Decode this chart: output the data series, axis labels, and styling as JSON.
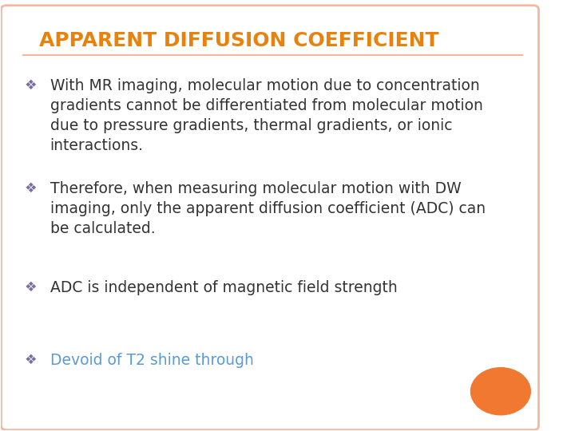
{
  "title": "APPARENT DIFFUSION COEFFICIENT",
  "title_color": "#E8820C",
  "title_fontsize": 18,
  "background_color": "#FFFFFF",
  "border_color": "#F4B8A0",
  "bullet_color": "#7B6FA0",
  "bullet_char": "❖",
  "body_text_color": "#333333",
  "body_fontsize": 13.5,
  "last_bullet_color": "#5B9BD5",
  "orange_circle_color": "#F07830",
  "bullets": [
    {
      "text": "With MR imaging, molecular motion due to concentration\ngradients cannot be differentiated from molecular motion\ndue to pressure gradients, thermal gradients, or ionic\ninteractions.",
      "color": "#333333"
    },
    {
      "text": "Therefore, when measuring molecular motion with DW\nimaging, only the apparent diffusion coefficient (ADC) can\nbe calculated.",
      "color": "#333333"
    },
    {
      "text": "ADC is independent of magnetic field strength",
      "color": "#333333"
    },
    {
      "text": "Devoid of T2 shine through",
      "color": "#5B9BD5"
    }
  ]
}
